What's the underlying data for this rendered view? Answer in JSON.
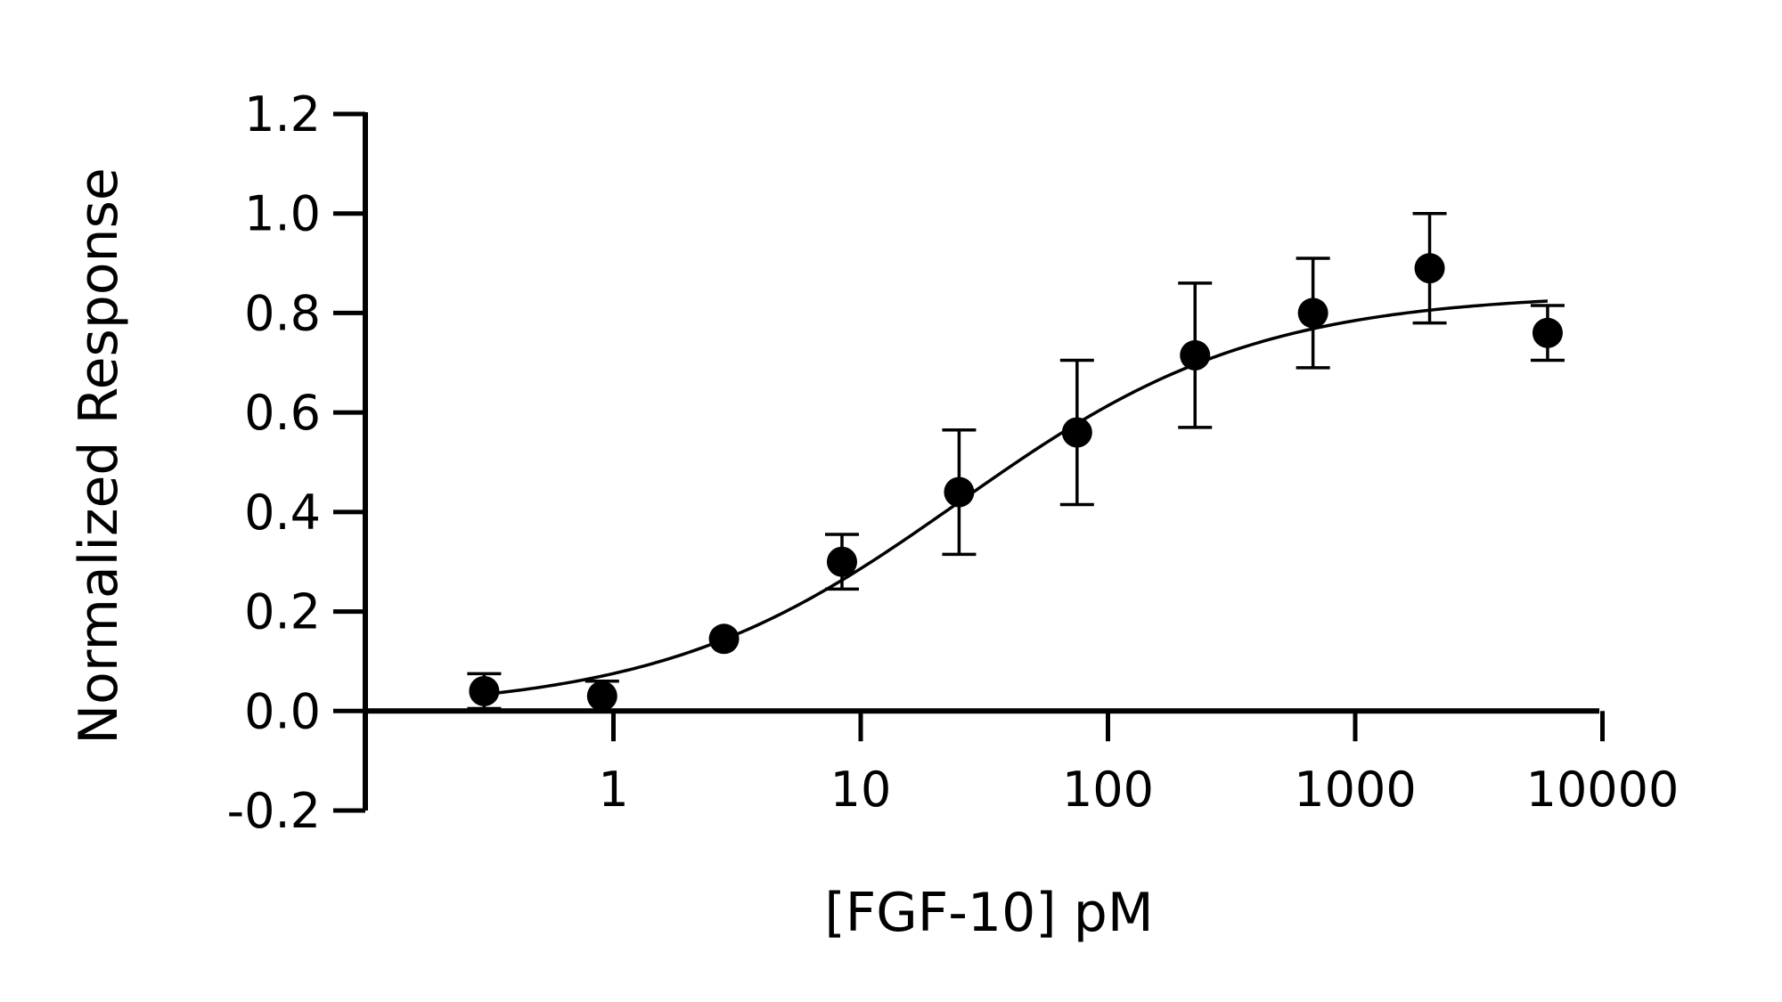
{
  "chart_data": {
    "type": "scatter",
    "title": "",
    "xlabel": "[FGF-10] pM",
    "ylabel": "Normalized Response",
    "x_scale": "log10",
    "xlim": [
      0.1,
      10000
    ],
    "ylim": [
      -0.2,
      1.2
    ],
    "x_ticks": [
      1,
      10,
      100,
      1000,
      10000
    ],
    "x_tick_labels": [
      "1",
      "10",
      "100",
      "1000",
      "10000"
    ],
    "y_ticks": [
      -0.2,
      0,
      0.2,
      0.4,
      0.6,
      0.8,
      1.0,
      1.2
    ],
    "y_tick_labels": [
      "-0.2",
      "0.0",
      "0.2",
      "0.4",
      "0.6",
      "0.8",
      "1.0",
      "1.2"
    ],
    "grid": false,
    "legend": "none",
    "color": "#000000",
    "series": [
      {
        "x": [
          0.3,
          0.9,
          2.8,
          8.4,
          25,
          75,
          225,
          675,
          2000,
          6000
        ],
        "y": [
          0.04,
          0.03,
          0.145,
          0.3,
          0.44,
          0.56,
          0.715,
          0.8,
          0.89,
          0.76
        ],
        "error": [
          0.035,
          0.03,
          0.0,
          0.055,
          0.125,
          0.145,
          0.145,
          0.11,
          0.11,
          0.055
        ]
      }
    ],
    "fit": {
      "model": "4PL",
      "bottom": 0.0,
      "top": 0.84,
      "ec50": 25,
      "hill": 0.72,
      "x_range": [
        0.3,
        6000
      ]
    }
  }
}
